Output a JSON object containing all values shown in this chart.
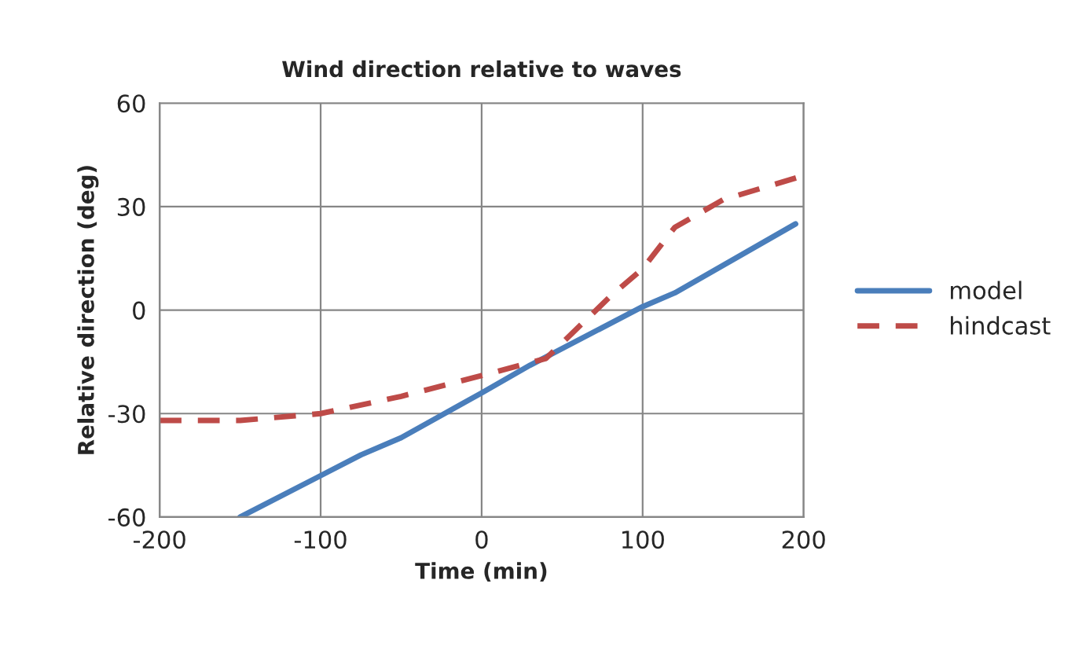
{
  "chart_data": {
    "type": "line",
    "title": "Wind direction relative to waves",
    "xlabel": "Time (min)",
    "ylabel": "Relative direction (deg)",
    "xlim": [
      -200,
      200
    ],
    "xticks": [
      -200,
      -100,
      0,
      100,
      200
    ],
    "ylim": [
      -60,
      60
    ],
    "yticks": [
      -60,
      -30,
      0,
      30,
      60
    ],
    "grid": true,
    "legend": "right",
    "series": [
      {
        "name": "model",
        "color": "#4a7ebb",
        "line_style": "solid",
        "x": [
          -150,
          -100,
          -75,
          -50,
          0,
          30,
          100,
          120,
          195
        ],
        "values": [
          -60,
          -48,
          -42,
          -37,
          -24,
          -16,
          1,
          5,
          25
        ]
      },
      {
        "name": "hindcast",
        "color": "#be4b48",
        "line_style": "dashed",
        "x": [
          -200,
          -150,
          -100,
          -50,
          0,
          40,
          60,
          80,
          100,
          120,
          150,
          200
        ],
        "values": [
          -32,
          -32,
          -30,
          -25,
          -19,
          -14,
          -5,
          4,
          12,
          24,
          32,
          39
        ]
      }
    ]
  }
}
